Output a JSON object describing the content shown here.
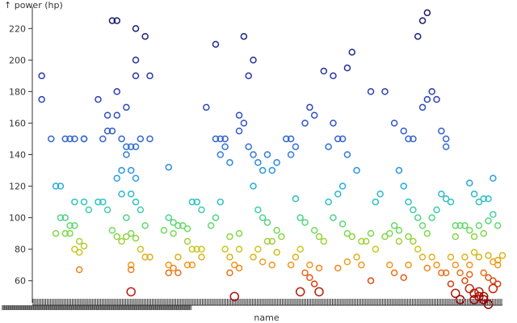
{
  "chart_data": {
    "type": "scatter",
    "title": "",
    "ylabel": "↑ power (hp)",
    "xlabel": "name",
    "x_axis": "categorical (one category per car name, labels overlapping)",
    "ylim": [
      46,
      234
    ],
    "yticks": [
      60,
      80,
      100,
      120,
      140,
      160,
      180,
      200,
      220
    ],
    "ytick_labels": [
      "60",
      "80",
      "100",
      "120",
      "140",
      "160",
      "180",
      "200",
      "220"
    ],
    "grid": false,
    "legend": "none",
    "marker": "open circle",
    "color_encoding": "power, continuous scale: low = red/orange, mid = yellow/green/cyan, high = blue/dark navy",
    "n_categories": 300,
    "points": [
      [
        0.02,
        190
      ],
      [
        0.02,
        175
      ],
      [
        0.04,
        150
      ],
      [
        0.07,
        150
      ],
      [
        0.08,
        150
      ],
      [
        0.09,
        150
      ],
      [
        0.11,
        150
      ],
      [
        0.11,
        150
      ],
      [
        0.17,
        225
      ],
      [
        0.18,
        225
      ],
      [
        0.22,
        220
      ],
      [
        0.24,
        215
      ],
      [
        0.22,
        200
      ],
      [
        0.22,
        190
      ],
      [
        0.25,
        190
      ],
      [
        0.14,
        175
      ],
      [
        0.16,
        165
      ],
      [
        0.18,
        165
      ],
      [
        0.18,
        180
      ],
      [
        0.2,
        170
      ],
      [
        0.16,
        155
      ],
      [
        0.17,
        155
      ],
      [
        0.15,
        150
      ],
      [
        0.19,
        150
      ],
      [
        0.2,
        145
      ],
      [
        0.21,
        145
      ],
      [
        0.22,
        145
      ],
      [
        0.23,
        150
      ],
      [
        0.25,
        150
      ],
      [
        0.2,
        140
      ],
      [
        0.19,
        130
      ],
      [
        0.21,
        130
      ],
      [
        0.22,
        125
      ],
      [
        0.18,
        125
      ],
      [
        0.05,
        120
      ],
      [
        0.06,
        120
      ],
      [
        0.09,
        110
      ],
      [
        0.11,
        110
      ],
      [
        0.12,
        105
      ],
      [
        0.06,
        100
      ],
      [
        0.07,
        100
      ],
      [
        0.08,
        95
      ],
      [
        0.09,
        95
      ],
      [
        0.05,
        90
      ],
      [
        0.07,
        90
      ],
      [
        0.08,
        90
      ],
      [
        0.1,
        85
      ],
      [
        0.11,
        82
      ],
      [
        0.09,
        80
      ],
      [
        0.1,
        78
      ],
      [
        0.1,
        67
      ],
      [
        0.14,
        110
      ],
      [
        0.15,
        110
      ],
      [
        0.16,
        105
      ],
      [
        0.19,
        115
      ],
      [
        0.21,
        115
      ],
      [
        0.22,
        110
      ],
      [
        0.2,
        100
      ],
      [
        0.23,
        105
      ],
      [
        0.24,
        95
      ],
      [
        0.17,
        92
      ],
      [
        0.18,
        88
      ],
      [
        0.19,
        85
      ],
      [
        0.2,
        88
      ],
      [
        0.21,
        90
      ],
      [
        0.22,
        87
      ],
      [
        0.23,
        80
      ],
      [
        0.24,
        75
      ],
      [
        0.25,
        75
      ],
      [
        0.21,
        70
      ],
      [
        0.21,
        67
      ],
      [
        0.21,
        53
      ],
      [
        0.29,
        132
      ],
      [
        0.29,
        100
      ],
      [
        0.3,
        97
      ],
      [
        0.31,
        95
      ],
      [
        0.28,
        92
      ],
      [
        0.3,
        90
      ],
      [
        0.32,
        95
      ],
      [
        0.33,
        93
      ],
      [
        0.34,
        110
      ],
      [
        0.35,
        110
      ],
      [
        0.36,
        105
      ],
      [
        0.33,
        85
      ],
      [
        0.34,
        80
      ],
      [
        0.35,
        80
      ],
      [
        0.36,
        80
      ],
      [
        0.31,
        75
      ],
      [
        0.29,
        70
      ],
      [
        0.3,
        68
      ],
      [
        0.31,
        65
      ],
      [
        0.29,
        65
      ],
      [
        0.33,
        70
      ],
      [
        0.34,
        70
      ],
      [
        0.36,
        75
      ],
      [
        0.37,
        170
      ],
      [
        0.39,
        150
      ],
      [
        0.4,
        150
      ],
      [
        0.41,
        150
      ],
      [
        0.39,
        210
      ],
      [
        0.4,
        140
      ],
      [
        0.41,
        145
      ],
      [
        0.42,
        135
      ],
      [
        0.4,
        110
      ],
      [
        0.39,
        100
      ],
      [
        0.38,
        95
      ],
      [
        0.42,
        88
      ],
      [
        0.44,
        90
      ],
      [
        0.44,
        80
      ],
      [
        0.41,
        80
      ],
      [
        0.42,
        75
      ],
      [
        0.43,
        70
      ],
      [
        0.44,
        68
      ],
      [
        0.42,
        65
      ],
      [
        0.43,
        50
      ],
      [
        0.45,
        215
      ],
      [
        0.47,
        200
      ],
      [
        0.46,
        190
      ],
      [
        0.44,
        165
      ],
      [
        0.45,
        160
      ],
      [
        0.44,
        155
      ],
      [
        0.46,
        145
      ],
      [
        0.47,
        140
      ],
      [
        0.49,
        130
      ],
      [
        0.5,
        140
      ],
      [
        0.51,
        130
      ],
      [
        0.52,
        135
      ],
      [
        0.48,
        135
      ],
      [
        0.47,
        120
      ],
      [
        0.48,
        105
      ],
      [
        0.49,
        100
      ],
      [
        0.5,
        97
      ],
      [
        0.52,
        92
      ],
      [
        0.53,
        88
      ],
      [
        0.5,
        85
      ],
      [
        0.51,
        85
      ],
      [
        0.52,
        78
      ],
      [
        0.48,
        80
      ],
      [
        0.47,
        75
      ],
      [
        0.49,
        72
      ],
      [
        0.51,
        70
      ],
      [
        0.54,
        150
      ],
      [
        0.55,
        150
      ],
      [
        0.56,
        145
      ],
      [
        0.55,
        140
      ],
      [
        0.59,
        170
      ],
      [
        0.6,
        165
      ],
      [
        0.58,
        160
      ],
      [
        0.56,
        112
      ],
      [
        0.57,
        100
      ],
      [
        0.58,
        97
      ],
      [
        0.6,
        92
      ],
      [
        0.61,
        88
      ],
      [
        0.62,
        85
      ],
      [
        0.57,
        80
      ],
      [
        0.56,
        75
      ],
      [
        0.55,
        70
      ],
      [
        0.58,
        65
      ],
      [
        0.59,
        62
      ],
      [
        0.6,
        58
      ],
      [
        0.61,
        53
      ],
      [
        0.57,
        53
      ],
      [
        0.59,
        70
      ],
      [
        0.61,
        68
      ],
      [
        0.62,
        193
      ],
      [
        0.64,
        190
      ],
      [
        0.64,
        160
      ],
      [
        0.65,
        150
      ],
      [
        0.63,
        145
      ],
      [
        0.67,
        140
      ],
      [
        0.69,
        130
      ],
      [
        0.66,
        150
      ],
      [
        0.68,
        205
      ],
      [
        0.67,
        195
      ],
      [
        0.66,
        120
      ],
      [
        0.65,
        115
      ],
      [
        0.63,
        110
      ],
      [
        0.64,
        100
      ],
      [
        0.66,
        96
      ],
      [
        0.67,
        90
      ],
      [
        0.68,
        88
      ],
      [
        0.7,
        85
      ],
      [
        0.71,
        85
      ],
      [
        0.72,
        90
      ],
      [
        0.73,
        80
      ],
      [
        0.69,
        75
      ],
      [
        0.67,
        72
      ],
      [
        0.65,
        68
      ],
      [
        0.7,
        70
      ],
      [
        0.72,
        60
      ],
      [
        0.73,
        110
      ],
      [
        0.74,
        115
      ],
      [
        0.75,
        88
      ],
      [
        0.76,
        90
      ],
      [
        0.72,
        180
      ],
      [
        0.75,
        180
      ],
      [
        0.77,
        160
      ],
      [
        0.79,
        155
      ],
      [
        0.8,
        150
      ],
      [
        0.81,
        150
      ],
      [
        0.82,
        215
      ],
      [
        0.83,
        225
      ],
      [
        0.84,
        230
      ],
      [
        0.84,
        175
      ],
      [
        0.85,
        180
      ],
      [
        0.86,
        175
      ],
      [
        0.87,
        155
      ],
      [
        0.88,
        150
      ],
      [
        0.88,
        145
      ],
      [
        0.83,
        170
      ],
      [
        0.78,
        130
      ],
      [
        0.79,
        120
      ],
      [
        0.8,
        110
      ],
      [
        0.81,
        105
      ],
      [
        0.82,
        100
      ],
      [
        0.83,
        95
      ],
      [
        0.84,
        90
      ],
      [
        0.85,
        100
      ],
      [
        0.86,
        105
      ],
      [
        0.87,
        115
      ],
      [
        0.88,
        112
      ],
      [
        0.89,
        110
      ],
      [
        0.9,
        95
      ],
      [
        0.91,
        95
      ],
      [
        0.77,
        95
      ],
      [
        0.78,
        92
      ],
      [
        0.76,
        70
      ],
      [
        0.77,
        65
      ],
      [
        0.79,
        62
      ],
      [
        0.8,
        70
      ],
      [
        0.78,
        85
      ],
      [
        0.8,
        88
      ],
      [
        0.81,
        85
      ],
      [
        0.82,
        80
      ],
      [
        0.83,
        75
      ],
      [
        0.84,
        68
      ],
      [
        0.85,
        75
      ],
      [
        0.86,
        70
      ],
      [
        0.87,
        65
      ],
      [
        0.88,
        65
      ],
      [
        0.9,
        70
      ],
      [
        0.91,
        65
      ],
      [
        0.89,
        58
      ],
      [
        0.92,
        95
      ],
      [
        0.93,
        92
      ],
      [
        0.94,
        88
      ],
      [
        0.95,
        95
      ],
      [
        0.96,
        90
      ],
      [
        0.93,
        122
      ],
      [
        0.94,
        115
      ],
      [
        0.95,
        110
      ],
      [
        0.96,
        112
      ],
      [
        0.97,
        112
      ],
      [
        0.98,
        125
      ],
      [
        0.97,
        98
      ],
      [
        0.98,
        102
      ],
      [
        0.99,
        95
      ],
      [
        0.92,
        75
      ],
      [
        0.93,
        70
      ],
      [
        0.94,
        78
      ],
      [
        0.95,
        75
      ],
      [
        0.96,
        65
      ],
      [
        0.97,
        62
      ],
      [
        0.98,
        60
      ],
      [
        0.99,
        58
      ],
      [
        0.92,
        60
      ],
      [
        0.93,
        55
      ],
      [
        0.94,
        52
      ],
      [
        0.95,
        50
      ],
      [
        0.96,
        48
      ],
      [
        0.97,
        76
      ],
      [
        0.98,
        72
      ],
      [
        0.99,
        70
      ],
      [
        1.0,
        76
      ],
      [
        0.9,
        52
      ],
      [
        0.91,
        48
      ],
      [
        0.95,
        53
      ],
      [
        0.96,
        50
      ],
      [
        0.94,
        48
      ],
      [
        0.97,
        45
      ],
      [
        0.98,
        55
      ],
      [
        0.99,
        73
      ],
      [
        0.93,
        64
      ],
      [
        0.89,
        75
      ],
      [
        0.9,
        88
      ]
    ]
  }
}
